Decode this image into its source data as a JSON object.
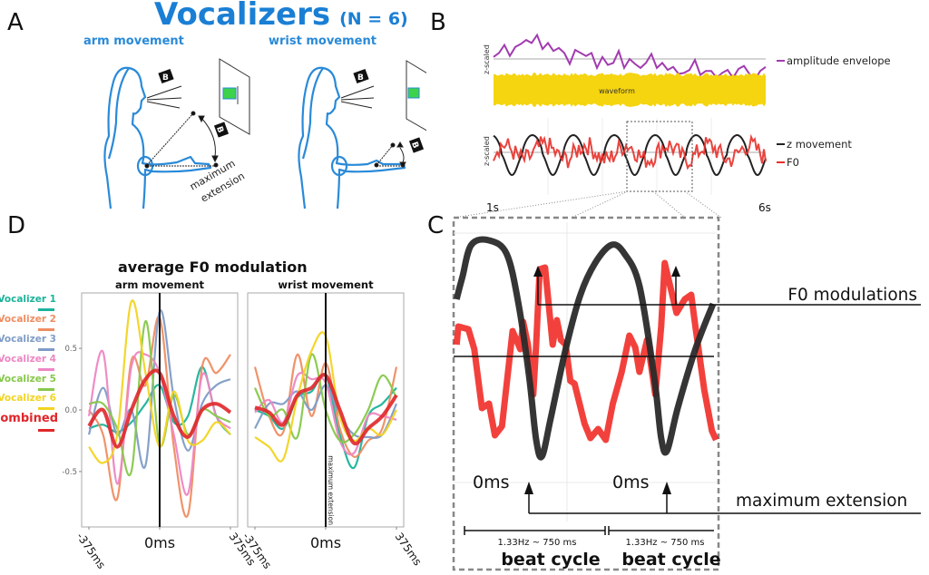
{
  "figure": {
    "panel_letters": {
      "a": "A",
      "b": "B",
      "c": "C",
      "d": "D"
    },
    "title": "Vocalizers",
    "title_n": "(N = 6)"
  },
  "panel_a": {
    "arm_label": "arm movement",
    "wrist_label": "wrist movement",
    "beat_marker": "B",
    "max_extension_label_1": "maximum",
    "max_extension_label_2": "extension"
  },
  "panel_b": {
    "ylabel_top": "z-scaled",
    "ylabel_bottom": "z-scaled",
    "waveform_label": "waveform",
    "legend": [
      {
        "label": "amplitude envelope",
        "color": "#a23bb0"
      },
      {
        "label": "z movement",
        "color": "#222222"
      },
      {
        "label": "F0",
        "color": "#e8302a"
      }
    ],
    "x_start": "1s",
    "x_end": "6s"
  },
  "panel_c": {
    "f0_mod_label": "F0 modulations",
    "max_ext_label": "maximum extension",
    "zero_label_1": "0ms",
    "zero_label_2": "0ms",
    "cycle_freq_1": "1.33Hz ~ 750 ms",
    "cycle_freq_2": "1.33Hz ~ 750 ms",
    "cycle_label_1": "beat cycle",
    "cycle_label_2": "beat cycle"
  },
  "panel_d": {
    "title": "average F0 modulation",
    "legend": [
      {
        "label": "Vocalizer 1",
        "color": "#1bb39a"
      },
      {
        "label": "Vocalizer 2",
        "color": "#ef8d62"
      },
      {
        "label": "Vocalizer 3",
        "color": "#7f9cc6"
      },
      {
        "label": "Vocalizer 4",
        "color": "#ee86c3"
      },
      {
        "label": "Vocalizer 5",
        "color": "#86c84a"
      },
      {
        "label": "Vocalizer 6",
        "color": "#f2d422"
      },
      {
        "label": "combined",
        "color": "#e0262a"
      }
    ],
    "max_ext_vertical_label": "maximum extension"
  },
  "chart_data": [
    {
      "type": "line",
      "title": "Vocalizers (N = 6) — panel B: amplitude envelope",
      "xlabel": "",
      "ylabel": "z-scaled",
      "x_range": [
        1,
        6
      ],
      "x_tick_labels": [
        "1s",
        "6s"
      ],
      "series": [
        {
          "name": "amplitude envelope",
          "color": "#a23bb0",
          "x": [
            1.0,
            1.1,
            1.2,
            1.3,
            1.4,
            1.5,
            1.6,
            1.7,
            1.8,
            1.9,
            2.0,
            2.1,
            2.2,
            2.3,
            2.4,
            2.5,
            2.6,
            2.7,
            2.8,
            2.9,
            3.0,
            3.1,
            3.2,
            3.3,
            3.4,
            3.5,
            3.6,
            3.7,
            3.8,
            3.9,
            4.0,
            4.1,
            4.2,
            4.3,
            4.4,
            4.5,
            4.6,
            4.7,
            4.8,
            4.9,
            5.0,
            5.1,
            5.2,
            5.3,
            5.4,
            5.5,
            5.6,
            5.7,
            5.8,
            5.9,
            6.0
          ],
          "y": [
            0.1,
            0.3,
            0.7,
            0.15,
            0.6,
            0.75,
            0.95,
            0.8,
            1.2,
            0.5,
            0.8,
            0.4,
            0.55,
            0.3,
            -0.25,
            0.45,
            0.3,
            0.15,
            0.3,
            -0.45,
            0.1,
            -0.3,
            -0.2,
            0.4,
            -0.45,
            0.0,
            -0.25,
            -0.45,
            -0.2,
            0.25,
            -0.45,
            -0.2,
            -0.55,
            -0.4,
            -0.75,
            -0.7,
            -0.55,
            -0.05,
            -0.8,
            -0.6,
            -0.6,
            -0.95,
            -0.7,
            -0.55,
            -0.95,
            -0.5,
            -0.35,
            -0.75,
            -1.05,
            -0.6,
            -0.4
          ]
        }
      ]
    },
    {
      "type": "line",
      "title": "panel B: z movement and F0",
      "xlabel": "",
      "ylabel": "z-scaled",
      "x_range": [
        1,
        6
      ],
      "x_tick_labels": [
        "1s",
        "6s"
      ],
      "beat_frequency_hz": 1.33,
      "series": [
        {
          "name": "z movement",
          "color": "#222222",
          "description": "periodic oscillation at ~1.33 Hz, minima at maximum extension"
        },
        {
          "name": "F0",
          "color": "#e8302a",
          "description": "noisy pitch trace with peaks following each movement minimum"
        }
      ]
    },
    {
      "type": "line",
      "title": "average F0 modulation — arm movement",
      "xlabel": "",
      "ylabel": "",
      "x": [
        -375,
        -300,
        -225,
        -150,
        -75,
        0,
        75,
        150,
        225,
        300,
        375
      ],
      "x_tick_labels": [
        "-375ms",
        "0ms",
        "375ms"
      ],
      "y_tick_labels": [
        "0.5",
        "0.0",
        "-0.5"
      ],
      "ylim": [
        -0.95,
        0.95
      ],
      "series": [
        {
          "name": "Vocalizer 1",
          "color": "#1bb39a",
          "values": [
            -0.15,
            -0.12,
            -0.18,
            -0.1,
            0.05,
            0.2,
            -0.1,
            -0.05,
            0.35,
            -0.05,
            -0.2
          ]
        },
        {
          "name": "Vocalizer 2",
          "color": "#ef8d62",
          "values": [
            0.0,
            -0.2,
            -0.72,
            0.4,
            0.2,
            0.75,
            -0.3,
            -0.85,
            0.35,
            0.3,
            0.45
          ]
        },
        {
          "name": "Vocalizer 3",
          "color": "#7f9cc6",
          "values": [
            -0.2,
            0.18,
            -0.2,
            0.0,
            -0.45,
            0.8,
            0.1,
            -0.33,
            0.05,
            0.2,
            0.25
          ]
        },
        {
          "name": "Vocalizer 4",
          "color": "#ee86c3",
          "values": [
            -0.05,
            0.47,
            -0.6,
            0.35,
            0.45,
            0.3,
            -0.2,
            -0.68,
            0.28,
            -0.05,
            -0.15
          ]
        },
        {
          "name": "Vocalizer 5",
          "color": "#86c84a",
          "values": [
            0.05,
            0.05,
            -0.15,
            -0.5,
            0.72,
            -0.28,
            0.12,
            -0.2,
            0.0,
            -0.05,
            -0.1
          ]
        },
        {
          "name": "Vocalizer 6",
          "color": "#f2d422",
          "values": [
            -0.3,
            -0.43,
            -0.2,
            0.88,
            0.3,
            -0.3,
            0.15,
            -0.25,
            -0.25,
            -0.1,
            -0.2
          ]
        },
        {
          "name": "combined",
          "color": "#e0262a",
          "values": [
            -0.13,
            0.0,
            -0.3,
            0.0,
            0.25,
            0.3,
            -0.05,
            -0.22,
            0.0,
            0.05,
            -0.02
          ]
        }
      ]
    },
    {
      "type": "line",
      "title": "average F0 modulation — wrist movement",
      "xlabel": "",
      "ylabel": "",
      "x": [
        -375,
        -300,
        -225,
        -150,
        -75,
        0,
        75,
        150,
        225,
        300,
        375
      ],
      "x_tick_labels": [
        "-375ms",
        "0ms",
        "375ms"
      ],
      "ylim": [
        -0.95,
        0.95
      ],
      "annotation": "maximum extension at 0ms",
      "series": [
        {
          "name": "Vocalizer 1",
          "color": "#1bb39a",
          "values": [
            0.0,
            -0.05,
            -0.15,
            0.1,
            0.15,
            0.28,
            -0.2,
            -0.47,
            -0.05,
            0.05,
            0.18
          ]
        },
        {
          "name": "Vocalizer 2",
          "color": "#ef8d62",
          "values": [
            0.35,
            -0.05,
            -0.18,
            0.45,
            -0.05,
            0.38,
            -0.15,
            -0.38,
            -0.25,
            -0.15,
            0.35
          ]
        },
        {
          "name": "Vocalizer 3",
          "color": "#7f9cc6",
          "values": [
            -0.15,
            0.05,
            0.05,
            0.15,
            0.0,
            0.2,
            -0.05,
            -0.2,
            -0.22,
            -0.2,
            0.05
          ]
        },
        {
          "name": "Vocalizer 4",
          "color": "#ee86c3",
          "values": [
            -0.02,
            0.08,
            -0.1,
            0.28,
            0.25,
            0.22,
            -0.25,
            -0.35,
            -0.05,
            -0.05,
            -0.08
          ]
        },
        {
          "name": "Vocalizer 5",
          "color": "#86c84a",
          "values": [
            0.18,
            -0.05,
            0.0,
            -0.22,
            0.45,
            0.0,
            -0.25,
            -0.2,
            0.0,
            0.28,
            0.1
          ]
        },
        {
          "name": "Vocalizer 6",
          "color": "#f2d422",
          "values": [
            -0.22,
            -0.3,
            -0.4,
            0.1,
            0.48,
            0.6,
            -0.05,
            -0.25,
            -0.15,
            -0.2,
            0.0
          ]
        },
        {
          "name": "combined",
          "color": "#e0262a",
          "values": [
            0.02,
            -0.02,
            -0.12,
            0.12,
            0.18,
            0.28,
            0.0,
            -0.27,
            -0.15,
            -0.05,
            0.12
          ]
        }
      ]
    },
    {
      "type": "line",
      "title": "panel C: zoomed beat cycles",
      "annotations": [
        "F0 modulations",
        "maximum extension",
        "0ms",
        "0ms",
        "1.33Hz ~ 750 ms",
        "beat cycle"
      ],
      "series": [
        {
          "name": "z movement",
          "color": "#222222"
        },
        {
          "name": "F0",
          "color": "#e8302a"
        }
      ]
    }
  ]
}
